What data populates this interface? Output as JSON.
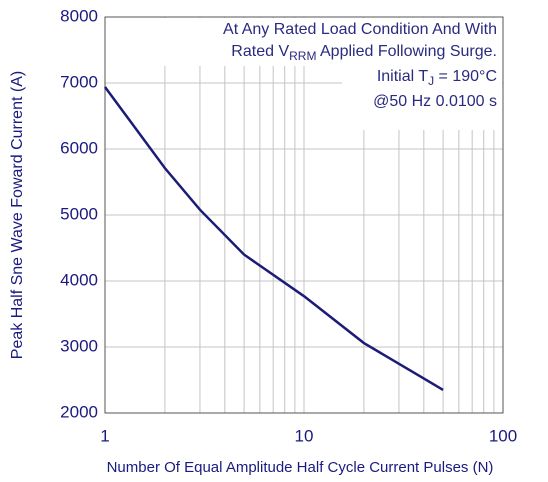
{
  "chart_data": {
    "type": "line",
    "log_x": true,
    "x_label": "Number Of Equal Amplitude Half Cycle Current Pulses (N)",
    "y_label": "Peak Half Sne Wave Foward Current (A)",
    "annotations": [
      [
        "At Any Rated Load Condition And With"
      ],
      [
        "Rated V",
        "RRM",
        " Applied Following Surge."
      ],
      [
        "Initial T",
        "J",
        " = 190°C"
      ],
      [
        "@50 Hz 0.0100 s"
      ]
    ],
    "x": [
      1,
      2,
      3,
      5,
      10,
      20,
      50
    ],
    "series": [
      {
        "color": "#1c1c78",
        "values": [
          6940,
          5710,
          5080,
          4400,
          3770,
          3060,
          2350
        ]
      }
    ],
    "xlim": [
      1,
      100
    ],
    "xticks": [
      1,
      10,
      100
    ],
    "minor_xticks": [
      2,
      3,
      4,
      5,
      6,
      7,
      8,
      9,
      20,
      30,
      40,
      50,
      60,
      70,
      80,
      90
    ],
    "ylim": [
      2000,
      8000
    ],
    "yticks": [
      2000,
      3000,
      4000,
      5000,
      6000,
      7000,
      8000
    ],
    "grid": true
  }
}
